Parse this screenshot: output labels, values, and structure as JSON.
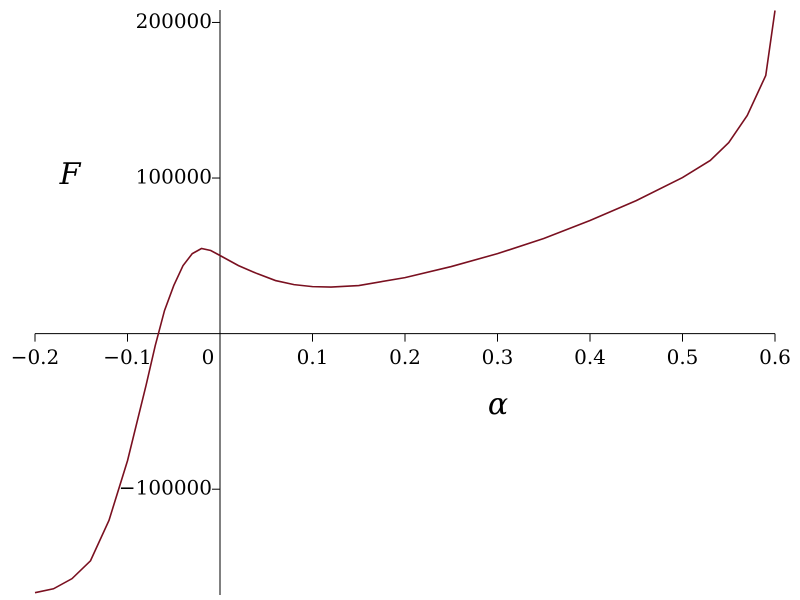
{
  "chart_data": {
    "type": "line",
    "x_label": "α",
    "y_label": "F",
    "x": [
      -0.2,
      -0.18,
      -0.16,
      -0.14,
      -0.12,
      -0.1,
      -0.08,
      -0.07,
      -0.06,
      -0.05,
      -0.04,
      -0.03,
      -0.02,
      -0.01,
      0,
      0.02,
      0.04,
      0.06,
      0.08,
      0.1,
      0.12,
      0.15,
      0.2,
      0.25,
      0.3,
      0.35,
      0.4,
      0.45,
      0.5,
      0.53,
      0.55,
      0.57,
      0.59,
      0.6
    ],
    "series": [
      {
        "color": "#7a1020",
        "values": [
          -166500,
          -164000,
          -157500,
          -146000,
          -120000,
          -81700,
          -33400,
          -7700,
          14800,
          30900,
          43700,
          51400,
          54700,
          53400,
          50200,
          43700,
          38600,
          34100,
          31500,
          30200,
          29900,
          30900,
          36000,
          43100,
          51400,
          61100,
          72700,
          85500,
          100300,
          111300,
          122800,
          140200,
          165900,
          207700
        ]
      }
    ],
    "xlim": [
      -0.2,
      0.6
    ],
    "ylim": [
      -168000,
      208000
    ],
    "xticks": [
      {
        "value": -0.2,
        "label": "−0.2"
      },
      {
        "value": -0.1,
        "label": "−0.1"
      },
      0,
      0.1,
      0.2,
      0.3,
      0.4,
      0.5,
      0.6
    ],
    "yticks": [
      {
        "value": -100000,
        "label": "−100000"
      },
      100000,
      200000
    ]
  }
}
